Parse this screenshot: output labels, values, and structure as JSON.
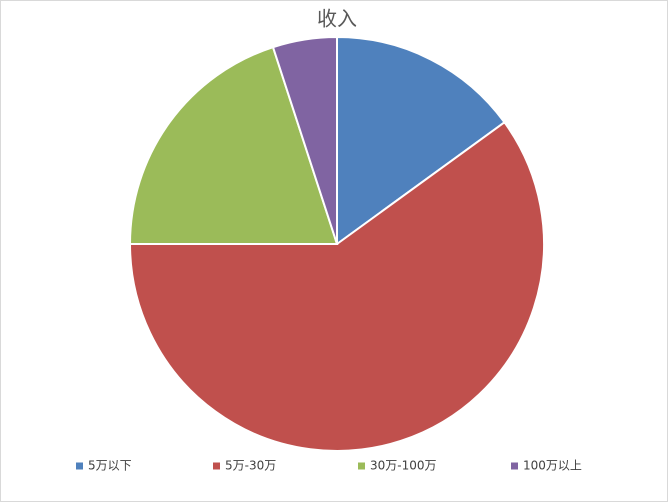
{
  "chart_data": {
    "type": "pie",
    "title": "收入",
    "categories": [
      "5万以下",
      "5万-30万",
      "30万-100万",
      "100万以上"
    ],
    "values": [
      15,
      60,
      20,
      5
    ],
    "colors": [
      "#4f81bd",
      "#c0504d",
      "#9bbb59",
      "#8064a2"
    ],
    "legend": "bottom"
  }
}
